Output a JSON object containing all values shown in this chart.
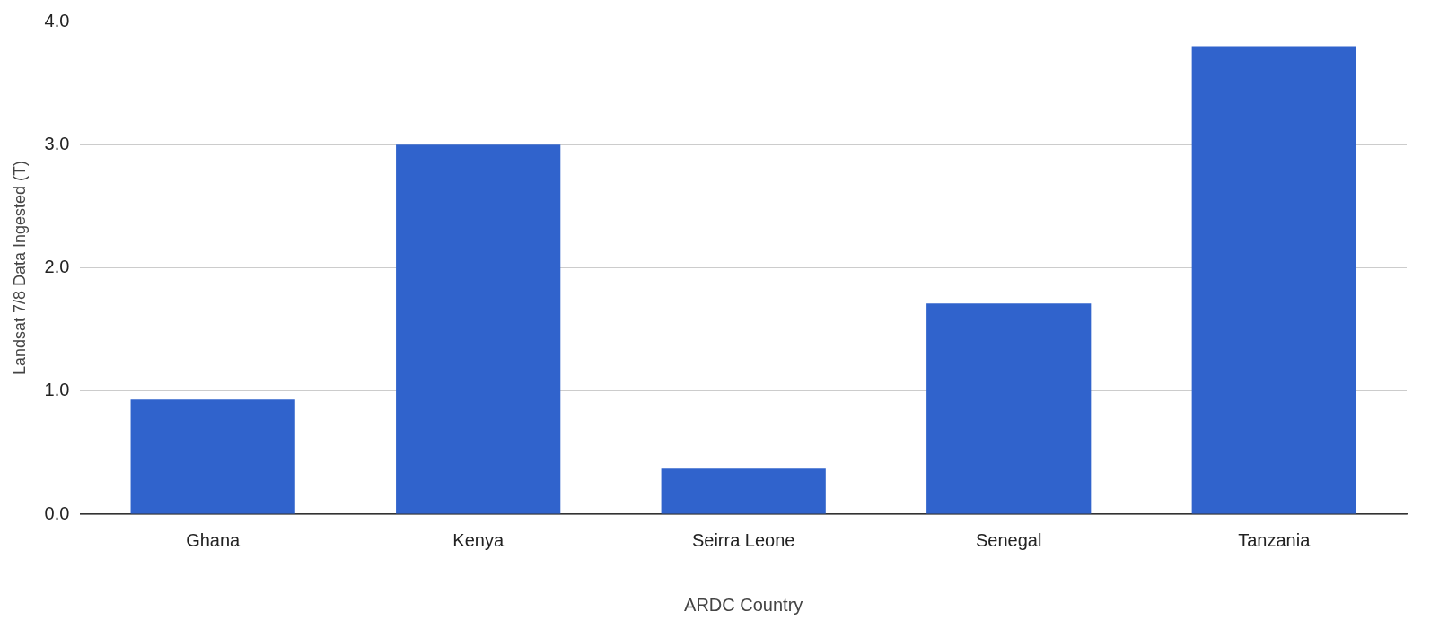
{
  "chart_data": {
    "type": "bar",
    "xlabel": "ARDC Country",
    "ylabel": "Landsat 7/8 Data Ingested (T)",
    "categories": [
      "Ghana",
      "Kenya",
      "Seirra Leone",
      "Senegal",
      "Tanzania"
    ],
    "values": [
      0.93,
      3.0,
      0.37,
      1.71,
      3.8
    ],
    "color": "#3063cc",
    "ylim": [
      0,
      4
    ],
    "yticks": [
      {
        "value": 0,
        "label": "0.0"
      },
      {
        "value": 1,
        "label": "1.0"
      },
      {
        "value": 2,
        "label": "2.0"
      },
      {
        "value": 3,
        "label": "3.0"
      },
      {
        "value": 4,
        "label": "4.0"
      }
    ],
    "grid": "y",
    "legend": false
  }
}
